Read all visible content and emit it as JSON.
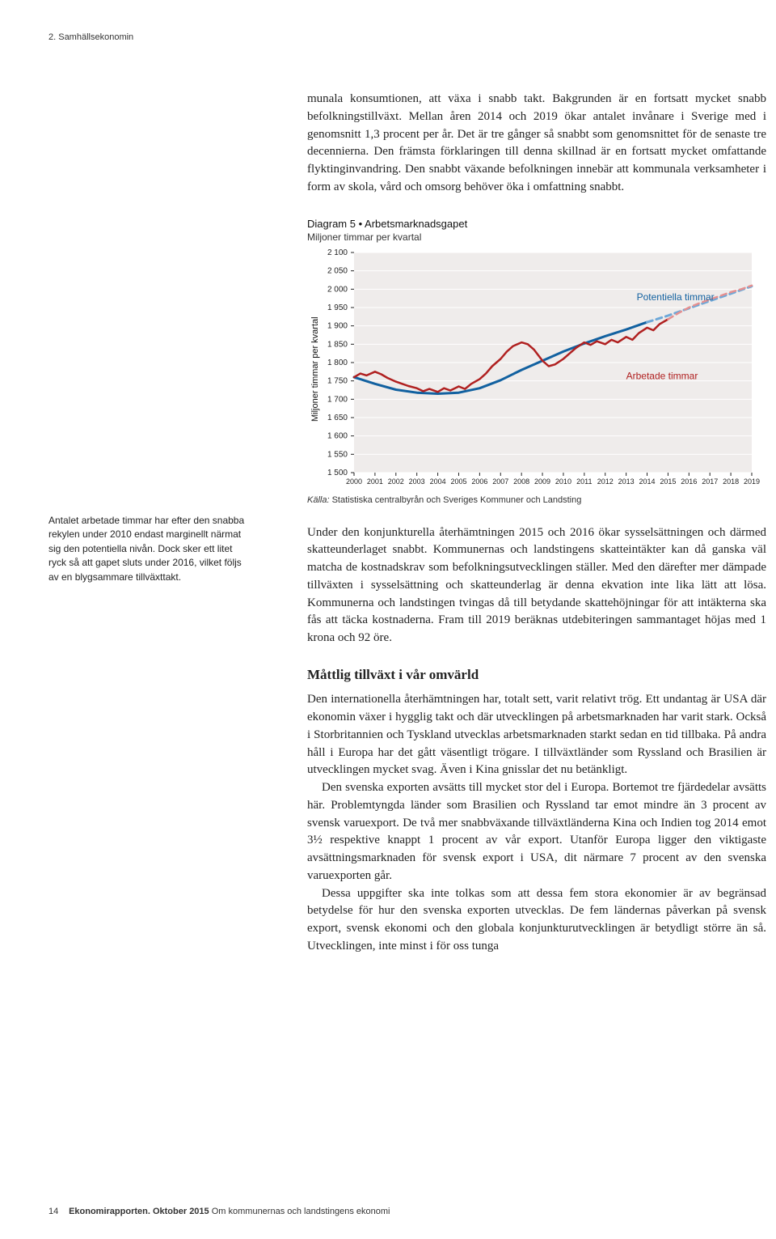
{
  "running_head": "2. Samhällsekonomin",
  "intro_para": "munala konsumtionen, att växa i snabb takt. Bakgrunden är en fortsatt mycket snabb befolkningstillväxt. Mellan åren 2014 och 2019 ökar antalet invånare i Sverige med i genomsnitt 1,3 procent per år. Det är tre gånger så snabbt som genomsnittet för de senaste tre decennierna. Den främsta förklaringen till denna skillnad är en fortsatt mycket omfattande flyktinginvandring. Den snabbt växande befolkningen innebär att kommunala verksamheter i form av skola, vård och omsorg behöver öka i omfattning snabbt.",
  "chart": {
    "title_prefix": "Diagram 5",
    "title_dot": " • ",
    "title_text": "Arbetsmarknadsgapet",
    "subtitle": "Miljoner timmar per kvartal",
    "y_axis_label": "Miljoner timmar per kvartal",
    "y_min": 1500,
    "y_max": 2100,
    "y_tick_step": 50,
    "y_ticks": [
      2100,
      2050,
      2000,
      1950,
      1900,
      1850,
      1800,
      1750,
      1700,
      1650,
      1600,
      1550,
      1500
    ],
    "x_years": [
      2000,
      2001,
      2002,
      2003,
      2004,
      2005,
      2006,
      2007,
      2008,
      2009,
      2010,
      2011,
      2012,
      2013,
      2014,
      2015,
      2016,
      2017,
      2018,
      2019
    ],
    "background_color": "#efeceb",
    "gridline_color": "#ffffff",
    "tick_color": "#222222",
    "tick_font_size": 10,
    "series": {
      "potentiella": {
        "label": "Potentiella timmar",
        "label_x_year": 2013.5,
        "label_y": 1970,
        "color_past": "#1261a0",
        "color_future": "#6ea8d8",
        "width": 3,
        "type": "line",
        "points": [
          [
            2000.0,
            1760
          ],
          [
            2001.0,
            1742
          ],
          [
            2002.0,
            1726
          ],
          [
            2003.0,
            1718
          ],
          [
            2004.0,
            1715
          ],
          [
            2005.0,
            1718
          ],
          [
            2006.0,
            1730
          ],
          [
            2007.0,
            1752
          ],
          [
            2008.0,
            1780
          ],
          [
            2009.0,
            1805
          ],
          [
            2010.0,
            1830
          ],
          [
            2011.0,
            1852
          ],
          [
            2012.0,
            1872
          ],
          [
            2013.0,
            1890
          ],
          [
            2014.0,
            1910
          ]
        ],
        "points_future": [
          [
            2014.0,
            1910
          ],
          [
            2015.0,
            1928
          ],
          [
            2016.0,
            1948
          ],
          [
            2017.0,
            1968
          ],
          [
            2018.0,
            1988
          ],
          [
            2019.0,
            2008
          ]
        ]
      },
      "arbetade": {
        "label": "Arbetade timmar",
        "label_x_year": 2013.0,
        "label_y": 1755,
        "color_past": "#b02020",
        "color_future": "#e59090",
        "width": 2.5,
        "type": "line",
        "points": [
          [
            2000.0,
            1760
          ],
          [
            2000.3,
            1770
          ],
          [
            2000.6,
            1765
          ],
          [
            2001.0,
            1775
          ],
          [
            2001.3,
            1768
          ],
          [
            2001.6,
            1758
          ],
          [
            2002.0,
            1748
          ],
          [
            2002.3,
            1742
          ],
          [
            2002.6,
            1736
          ],
          [
            2003.0,
            1730
          ],
          [
            2003.3,
            1722
          ],
          [
            2003.6,
            1728
          ],
          [
            2004.0,
            1720
          ],
          [
            2004.3,
            1730
          ],
          [
            2004.6,
            1724
          ],
          [
            2005.0,
            1735
          ],
          [
            2005.3,
            1728
          ],
          [
            2005.6,
            1742
          ],
          [
            2006.0,
            1755
          ],
          [
            2006.3,
            1770
          ],
          [
            2006.6,
            1790
          ],
          [
            2007.0,
            1810
          ],
          [
            2007.3,
            1830
          ],
          [
            2007.6,
            1845
          ],
          [
            2008.0,
            1855
          ],
          [
            2008.3,
            1850
          ],
          [
            2008.6,
            1835
          ],
          [
            2009.0,
            1805
          ],
          [
            2009.3,
            1790
          ],
          [
            2009.6,
            1795
          ],
          [
            2010.0,
            1810
          ],
          [
            2010.3,
            1825
          ],
          [
            2010.6,
            1840
          ],
          [
            2011.0,
            1855
          ],
          [
            2011.3,
            1848
          ],
          [
            2011.6,
            1858
          ],
          [
            2012.0,
            1850
          ],
          [
            2012.3,
            1862
          ],
          [
            2012.6,
            1855
          ],
          [
            2013.0,
            1870
          ],
          [
            2013.3,
            1862
          ],
          [
            2013.6,
            1880
          ],
          [
            2014.0,
            1895
          ],
          [
            2014.3,
            1888
          ],
          [
            2014.6,
            1905
          ],
          [
            2015.0,
            1918
          ]
        ],
        "points_future": [
          [
            2015.0,
            1918
          ],
          [
            2015.5,
            1935
          ],
          [
            2016.0,
            1950
          ],
          [
            2016.5,
            1962
          ],
          [
            2017.0,
            1972
          ],
          [
            2017.5,
            1982
          ],
          [
            2018.0,
            1992
          ],
          [
            2018.5,
            2000
          ],
          [
            2019.0,
            2010
          ]
        ]
      }
    },
    "label_color": "#1261a0",
    "label_color_red": "#b02020",
    "source_prefix": "Källa:",
    "source_text": " Statistiska centralbyrån och Sveriges Kommuner och Landsting"
  },
  "aside_note": "Antalet arbetade timmar har efter den snabba rekylen under 2010 endast marginellt närmat sig den potentiella nivån. Dock sker ett litet ryck så att gapet sluts under 2016, vilket följs av en blygsammare tillväxttakt.",
  "para_after_chart": "Under den konjunkturella återhämtningen 2015 och 2016 ökar sysselsättningen och därmed skatteunderlaget snabbt. Kommunernas och landstingens skatteintäkter kan då ganska väl matcha de kostnadskrav som befolkningsutvecklingen ställer. Med den därefter mer dämpade tillväxten i sysselsättning och skatteunderlag är denna ekvation inte lika lätt att lösa. Kommunerna och landstingen tvingas då till betydande skattehöjningar för att intäkterna ska fås att täcka kostnaderna. Fram till 2019 beräknas utdebiteringen sammantaget höjas med 1 krona och 92 öre.",
  "h3_world": "Måttlig tillväxt i vår omvärld",
  "para_world_1": "Den internationella återhämtningen har, totalt sett, varit relativt trög. Ett undantag är USA där ekonomin växer i hygglig takt och där utvecklingen på arbetsmarknaden har varit stark. Också i Storbritannien och Tyskland utvecklas arbetsmarknaden starkt sedan en tid tillbaka. På andra håll i Europa har det gått väsentligt trögare. I tillväxtländer som Ryssland och Brasilien är utvecklingen mycket svag. Även i Kina gnisslar det nu betänkligt.",
  "para_world_2": "Den svenska exporten avsätts till mycket stor del i Europa. Bortemot tre fjärdedelar avsätts här. Problemtyngda länder som Brasilien och Ryssland tar emot mindre än 3 procent av svensk varuexport. De två mer snabbväxande tillväxtländerna Kina och Indien tog 2014 emot 3½ respektive knappt 1 procent av vår export. Utanför Europa ligger den viktigaste avsättningsmarknaden för svensk export i USA, dit närmare 7 procent av den svenska varuexporten går.",
  "para_world_3": "Dessa uppgifter ska inte tolkas som att dessa fem stora ekonomier är av begränsad betydelse för hur den svenska exporten utvecklas. De fem ländernas påverkan på svensk export, svensk ekonomi och den globala konjunkturutvecklingen är betydligt större än så. Utvecklingen, inte minst i för oss tunga",
  "footer": {
    "page_no": "14",
    "strong": "Ekonomirapporten. Oktober 2015",
    "rest": " Om kommunernas och landstingens ekonomi"
  }
}
